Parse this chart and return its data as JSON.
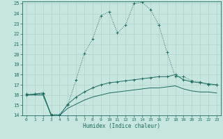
{
  "xlabel": "Humidex (Indice chaleur)",
  "background_color": "#c8e6e0",
  "grid_color": "#b0d0ca",
  "line_color": "#1a6b60",
  "xlim": [
    -0.5,
    23.5
  ],
  "ylim": [
    14,
    25.2
  ],
  "xticks": [
    0,
    1,
    2,
    3,
    4,
    5,
    6,
    7,
    8,
    9,
    10,
    11,
    12,
    13,
    14,
    15,
    16,
    17,
    18,
    19,
    20,
    21,
    22,
    23
  ],
  "yticks": [
    14,
    15,
    16,
    17,
    18,
    19,
    20,
    21,
    22,
    23,
    24,
    25
  ],
  "series1_x": [
    0,
    1,
    2,
    3,
    4,
    5,
    6,
    7,
    8,
    9,
    10,
    11,
    12,
    13,
    14,
    15,
    16,
    17,
    18,
    19,
    20,
    21,
    22,
    23
  ],
  "series1_y": [
    16.1,
    16.1,
    16.1,
    14.1,
    14.1,
    15.0,
    17.5,
    20.1,
    21.5,
    23.8,
    24.2,
    22.1,
    22.9,
    25.0,
    25.1,
    24.4,
    22.9,
    20.2,
    17.8,
    17.8,
    17.4,
    17.3,
    17.0,
    17.0
  ],
  "series2_x": [
    0,
    1,
    2,
    3,
    4,
    5,
    6,
    7,
    8,
    9,
    10,
    11,
    12,
    13,
    14,
    15,
    16,
    17,
    18,
    19,
    20,
    21,
    22,
    23
  ],
  "series2_y": [
    16.0,
    16.1,
    16.2,
    14.0,
    14.0,
    15.1,
    15.8,
    16.3,
    16.7,
    17.0,
    17.2,
    17.3,
    17.4,
    17.5,
    17.6,
    17.7,
    17.8,
    17.8,
    18.0,
    17.5,
    17.3,
    17.2,
    17.1,
    17.0
  ],
  "series3_x": [
    0,
    1,
    2,
    3,
    4,
    5,
    6,
    7,
    8,
    9,
    10,
    11,
    12,
    13,
    14,
    15,
    16,
    17,
    18,
    19,
    20,
    21,
    22,
    23
  ],
  "series3_y": [
    16.0,
    16.0,
    16.0,
    14.0,
    14.0,
    14.7,
    15.1,
    15.5,
    15.8,
    16.0,
    16.2,
    16.3,
    16.4,
    16.5,
    16.6,
    16.7,
    16.7,
    16.8,
    16.9,
    16.6,
    16.4,
    16.3,
    16.3,
    16.2
  ]
}
